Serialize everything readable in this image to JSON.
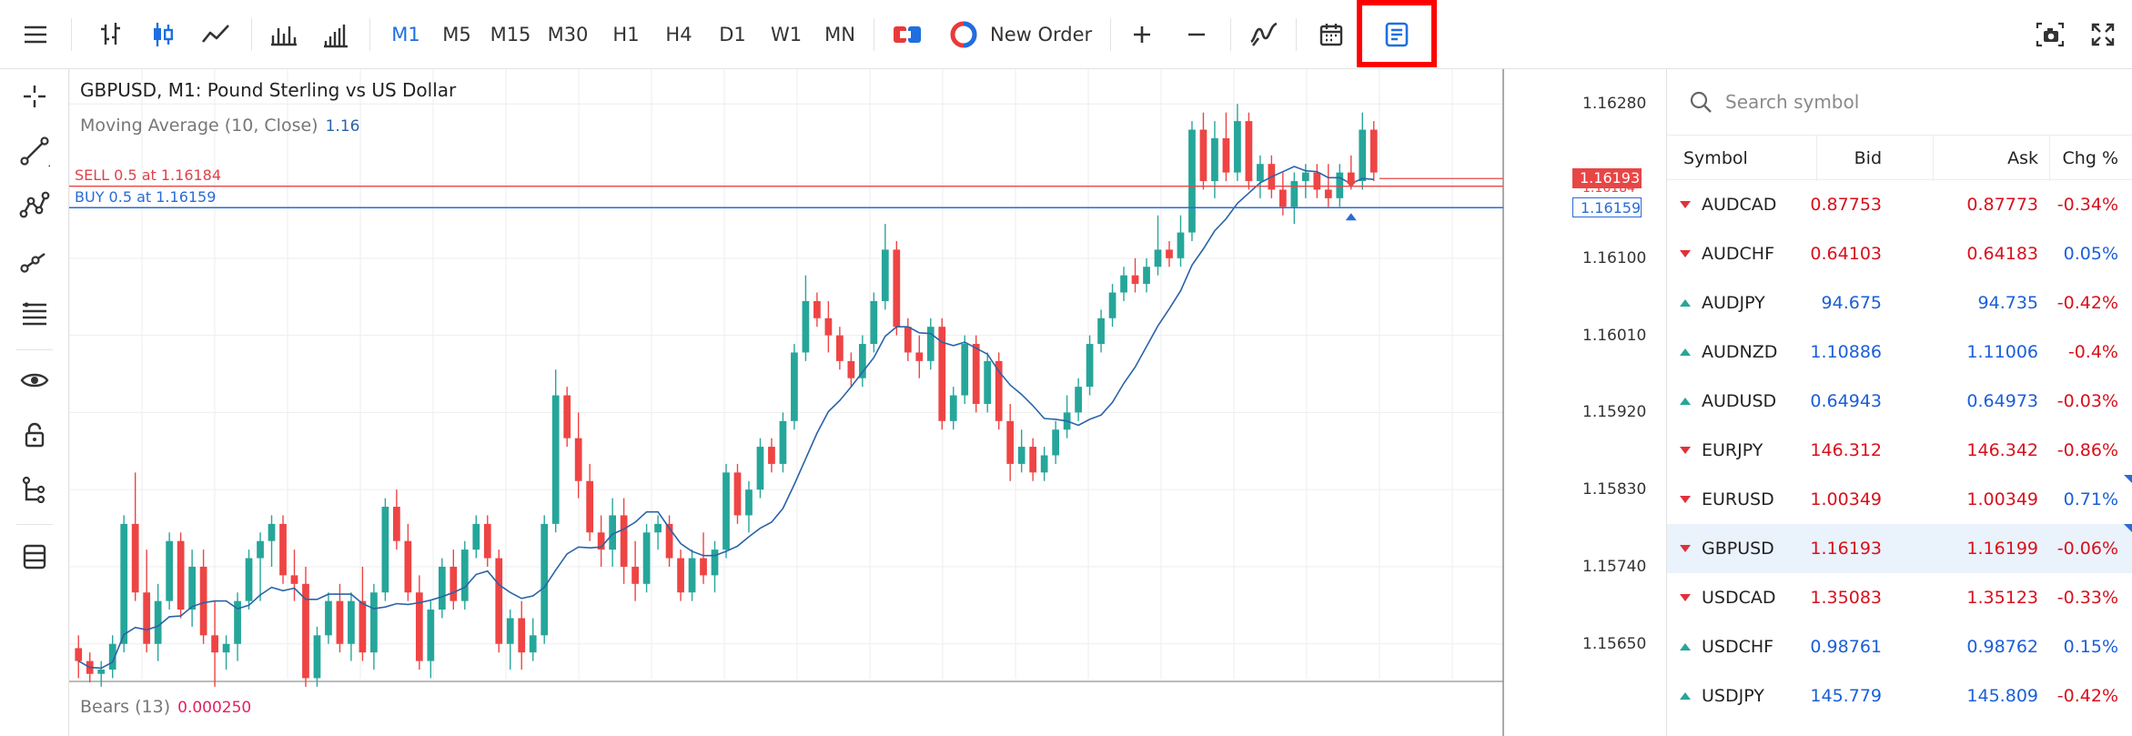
{
  "toolbar": {
    "timeframes": [
      {
        "label": "M1",
        "active": true
      },
      {
        "label": "M5",
        "active": false
      },
      {
        "label": "M15",
        "active": false
      },
      {
        "label": "M30",
        "active": false
      },
      {
        "label": "H1",
        "active": false
      },
      {
        "label": "H4",
        "active": false
      },
      {
        "label": "D1",
        "active": false
      },
      {
        "label": "W1",
        "active": false
      },
      {
        "label": "MN",
        "active": false
      }
    ],
    "new_order_label": "New Order",
    "icons": [
      "menu-icon",
      "bar-chart-icon",
      "candlestick-icon",
      "line-chart-icon",
      "volume-bars-icon",
      "tick-chart-icon",
      "one-click-trading-icon",
      "new-order-icon",
      "zoom-in-icon",
      "zoom-out-icon",
      "indicators-icon",
      "calendar-icon",
      "order-book-icon",
      "screenshot-icon",
      "fullscreen-icon"
    ],
    "accent_color": "#1e6fe0",
    "highlight_color": "#ff0000"
  },
  "left_tools": [
    "crosshair-icon",
    "trendline-icon",
    "multi-point-line-icon",
    "ray-icon",
    "fibonacci-icon",
    "eye-icon",
    "lock-icon",
    "object-tree-icon",
    "layers-icon"
  ],
  "chart": {
    "title": "GBPUSD, M1: Pound Sterling vs US Dollar",
    "indicator": {
      "label": "Moving Average (10, Close)",
      "value": "1.16"
    },
    "sell_line": {
      "label": "SELL 0.5 at 1.16184",
      "price": 1.16184,
      "tag": "1.16193",
      "color": "#e84545"
    },
    "buy_line": {
      "label": "BUY 0.5 at 1.16159",
      "price": 1.16159,
      "tag": "1.16159",
      "color": "#2a6bd6"
    },
    "price_tags_bottom_overlap": "1.16184",
    "sub_indicator": {
      "label": "Bears (13)",
      "value": "0.000250"
    },
    "y_ticks": [
      "1.16280",
      "1.16100",
      "1.16010",
      "1.15920",
      "1.15830",
      "1.15740",
      "1.15650"
    ],
    "up_color": "#26a69a",
    "down_color": "#ef4444"
  },
  "chart_data": {
    "type": "candlestick",
    "y_axis_labels": [
      "1.16280",
      "1.16100",
      "1.16010",
      "1.15920",
      "1.15830",
      "1.15740",
      "1.15650"
    ],
    "ylim": [
      1.1562,
      1.1631
    ],
    "ohlc": [
      [
        1.15645,
        1.1566,
        1.1561,
        1.1563
      ],
      [
        1.1563,
        1.1564,
        1.15605,
        1.15615
      ],
      [
        1.15615,
        1.1563,
        1.156,
        1.1562
      ],
      [
        1.1562,
        1.1566,
        1.1561,
        1.1565
      ],
      [
        1.1565,
        1.158,
        1.1564,
        1.1579
      ],
      [
        1.1579,
        1.1585,
        1.157,
        1.1571
      ],
      [
        1.1571,
        1.1576,
        1.1564,
        1.1565
      ],
      [
        1.1565,
        1.1572,
        1.1563,
        1.157
      ],
      [
        1.157,
        1.1578,
        1.1569,
        1.1577
      ],
      [
        1.1577,
        1.1578,
        1.1568,
        1.1569
      ],
      [
        1.1569,
        1.1576,
        1.1567,
        1.1574
      ],
      [
        1.1574,
        1.1576,
        1.1565,
        1.1566
      ],
      [
        1.1566,
        1.157,
        1.156,
        1.1564
      ],
      [
        1.1564,
        1.1566,
        1.1562,
        1.1565
      ],
      [
        1.1565,
        1.1571,
        1.1563,
        1.157
      ],
      [
        1.157,
        1.1576,
        1.1569,
        1.1575
      ],
      [
        1.1575,
        1.1578,
        1.157,
        1.1577
      ],
      [
        1.1577,
        1.158,
        1.1574,
        1.1579
      ],
      [
        1.1579,
        1.158,
        1.1572,
        1.1573
      ],
      [
        1.1573,
        1.1576,
        1.157,
        1.1572
      ],
      [
        1.1572,
        1.1574,
        1.156,
        1.1561
      ],
      [
        1.1561,
        1.1567,
        1.156,
        1.1566
      ],
      [
        1.1566,
        1.1571,
        1.1565,
        1.157
      ],
      [
        1.157,
        1.1572,
        1.1564,
        1.1565
      ],
      [
        1.1565,
        1.1571,
        1.1563,
        1.157
      ],
      [
        1.157,
        1.1574,
        1.1563,
        1.1564
      ],
      [
        1.1564,
        1.1572,
        1.1562,
        1.1571
      ],
      [
        1.1571,
        1.1582,
        1.157,
        1.1581
      ],
      [
        1.1581,
        1.1583,
        1.1576,
        1.1577
      ],
      [
        1.1577,
        1.1579,
        1.157,
        1.1571
      ],
      [
        1.1571,
        1.1573,
        1.1562,
        1.1563
      ],
      [
        1.1563,
        1.157,
        1.1561,
        1.1569
      ],
      [
        1.1569,
        1.1575,
        1.1568,
        1.1574
      ],
      [
        1.1574,
        1.1576,
        1.1569,
        1.157
      ],
      [
        1.157,
        1.1577,
        1.1569,
        1.1576
      ],
      [
        1.1576,
        1.158,
        1.1575,
        1.1579
      ],
      [
        1.1579,
        1.158,
        1.1574,
        1.1575
      ],
      [
        1.1575,
        1.1576,
        1.1564,
        1.1565
      ],
      [
        1.1565,
        1.1569,
        1.1562,
        1.1568
      ],
      [
        1.1568,
        1.157,
        1.1562,
        1.1564
      ],
      [
        1.1564,
        1.1568,
        1.1563,
        1.1566
      ],
      [
        1.1566,
        1.158,
        1.1565,
        1.1579
      ],
      [
        1.1579,
        1.1597,
        1.1578,
        1.1594
      ],
      [
        1.1594,
        1.1595,
        1.1588,
        1.1589
      ],
      [
        1.1589,
        1.1592,
        1.1582,
        1.1584
      ],
      [
        1.1584,
        1.1586,
        1.1577,
        1.1578
      ],
      [
        1.1578,
        1.158,
        1.1574,
        1.1576
      ],
      [
        1.1576,
        1.1582,
        1.1574,
        1.158
      ],
      [
        1.158,
        1.1582,
        1.1572,
        1.1574
      ],
      [
        1.1574,
        1.1577,
        1.157,
        1.1572
      ],
      [
        1.1572,
        1.1579,
        1.1571,
        1.1578
      ],
      [
        1.1578,
        1.158,
        1.1576,
        1.1579
      ],
      [
        1.1579,
        1.158,
        1.1574,
        1.1575
      ],
      [
        1.1575,
        1.1576,
        1.157,
        1.1571
      ],
      [
        1.1571,
        1.1576,
        1.157,
        1.1575
      ],
      [
        1.1575,
        1.1578,
        1.1572,
        1.1573
      ],
      [
        1.1573,
        1.1577,
        1.1571,
        1.1576
      ],
      [
        1.1576,
        1.1586,
        1.1575,
        1.1585
      ],
      [
        1.1585,
        1.1586,
        1.1579,
        1.158
      ],
      [
        1.158,
        1.1584,
        1.1578,
        1.1583
      ],
      [
        1.1583,
        1.1589,
        1.1582,
        1.1588
      ],
      [
        1.1588,
        1.1589,
        1.1585,
        1.1586
      ],
      [
        1.1586,
        1.1592,
        1.1585,
        1.1591
      ],
      [
        1.1591,
        1.16,
        1.159,
        1.1599
      ],
      [
        1.1599,
        1.1608,
        1.1598,
        1.1605
      ],
      [
        1.1605,
        1.1606,
        1.1602,
        1.1603
      ],
      [
        1.1603,
        1.1605,
        1.1599,
        1.1601
      ],
      [
        1.1601,
        1.1602,
        1.1597,
        1.1598
      ],
      [
        1.1598,
        1.1599,
        1.1595,
        1.1596
      ],
      [
        1.1596,
        1.1601,
        1.1595,
        1.16
      ],
      [
        1.16,
        1.1606,
        1.1599,
        1.1605
      ],
      [
        1.1605,
        1.1614,
        1.1604,
        1.1611
      ],
      [
        1.1611,
        1.1612,
        1.1601,
        1.1602
      ],
      [
        1.1602,
        1.1603,
        1.1598,
        1.1599
      ],
      [
        1.1599,
        1.1601,
        1.1596,
        1.1598
      ],
      [
        1.1598,
        1.1603,
        1.1597,
        1.1602
      ],
      [
        1.1602,
        1.1603,
        1.159,
        1.1591
      ],
      [
        1.1591,
        1.1595,
        1.159,
        1.1594
      ],
      [
        1.1594,
        1.1601,
        1.1593,
        1.16
      ],
      [
        1.16,
        1.1601,
        1.1592,
        1.1593
      ],
      [
        1.1593,
        1.1599,
        1.1592,
        1.1598
      ],
      [
        1.1598,
        1.1599,
        1.159,
        1.1591
      ],
      [
        1.1591,
        1.1593,
        1.1584,
        1.1586
      ],
      [
        1.1586,
        1.159,
        1.1585,
        1.1588
      ],
      [
        1.1588,
        1.1589,
        1.1584,
        1.1585
      ],
      [
        1.1585,
        1.1588,
        1.1584,
        1.1587
      ],
      [
        1.1587,
        1.1591,
        1.1586,
        1.159
      ],
      [
        1.159,
        1.1594,
        1.1589,
        1.1592
      ],
      [
        1.1592,
        1.1596,
        1.1591,
        1.1595
      ],
      [
        1.1595,
        1.1601,
        1.1594,
        1.16
      ],
      [
        1.16,
        1.1604,
        1.1599,
        1.1603
      ],
      [
        1.1603,
        1.1607,
        1.1602,
        1.1606
      ],
      [
        1.1606,
        1.1609,
        1.1605,
        1.1608
      ],
      [
        1.1608,
        1.161,
        1.1606,
        1.1607
      ],
      [
        1.1607,
        1.161,
        1.1606,
        1.1609
      ],
      [
        1.1609,
        1.1615,
        1.1608,
        1.1611
      ],
      [
        1.1611,
        1.1612,
        1.1609,
        1.161
      ],
      [
        1.161,
        1.1615,
        1.1609,
        1.1613
      ],
      [
        1.1613,
        1.1626,
        1.1612,
        1.1625
      ],
      [
        1.1625,
        1.1627,
        1.1618,
        1.1619
      ],
      [
        1.1619,
        1.1626,
        1.1617,
        1.1624
      ],
      [
        1.1624,
        1.1627,
        1.1619,
        1.162
      ],
      [
        1.162,
        1.1628,
        1.1619,
        1.1626
      ],
      [
        1.1626,
        1.1627,
        1.1618,
        1.1619
      ],
      [
        1.1619,
        1.1622,
        1.1617,
        1.1621
      ],
      [
        1.1621,
        1.1622,
        1.1617,
        1.1618
      ],
      [
        1.1618,
        1.162,
        1.1615,
        1.1616
      ],
      [
        1.1616,
        1.162,
        1.1614,
        1.1619
      ],
      [
        1.1619,
        1.1621,
        1.1617,
        1.162
      ],
      [
        1.162,
        1.1621,
        1.1617,
        1.1618
      ],
      [
        1.1618,
        1.1621,
        1.1616,
        1.1617
      ],
      [
        1.1617,
        1.1621,
        1.1616,
        1.162
      ],
      [
        1.162,
        1.1622,
        1.1618,
        1.1619
      ],
      [
        1.1619,
        1.1627,
        1.1618,
        1.1625
      ],
      [
        1.1625,
        1.1626,
        1.1619,
        1.162
      ]
    ],
    "moving_average": {
      "name": "Moving Average (10, Close)"
    },
    "sub_panel": {
      "name": "Bears (13)",
      "value": "0.000250"
    }
  },
  "panel": {
    "search_placeholder": "Search symbol",
    "headers": {
      "symbol": "Symbol",
      "bid": "Bid",
      "ask": "Ask",
      "chg": "Chg %"
    },
    "symbols": [
      {
        "name": "AUDCAD",
        "dir": "dn",
        "bid": "0.87753",
        "ask": "0.87773",
        "chg": "-0.34%",
        "price_color": "red",
        "chg_color": "red",
        "selected": false,
        "flag": false
      },
      {
        "name": "AUDCHF",
        "dir": "dn",
        "bid": "0.64103",
        "ask": "0.64183",
        "chg": "0.05%",
        "price_color": "red",
        "chg_color": "blue",
        "selected": false,
        "flag": false
      },
      {
        "name": "AUDJPY",
        "dir": "up",
        "bid": "94.675",
        "ask": "94.735",
        "chg": "-0.42%",
        "price_color": "blue",
        "chg_color": "red",
        "selected": false,
        "flag": false
      },
      {
        "name": "AUDNZD",
        "dir": "up",
        "bid": "1.10886",
        "ask": "1.11006",
        "chg": "-0.4%",
        "price_color": "blue",
        "chg_color": "red",
        "selected": false,
        "flag": false
      },
      {
        "name": "AUDUSD",
        "dir": "up",
        "bid": "0.64943",
        "ask": "0.64973",
        "chg": "-0.03%",
        "price_color": "blue",
        "chg_color": "red",
        "selected": false,
        "flag": false
      },
      {
        "name": "EURJPY",
        "dir": "dn",
        "bid": "146.312",
        "ask": "146.342",
        "chg": "-0.86%",
        "price_color": "red",
        "chg_color": "red",
        "selected": false,
        "flag": false
      },
      {
        "name": "EURUSD",
        "dir": "dn",
        "bid": "1.00349",
        "ask": "1.00349",
        "chg": "0.71%",
        "price_color": "red",
        "chg_color": "blue",
        "selected": false,
        "flag": true
      },
      {
        "name": "GBPUSD",
        "dir": "dn",
        "bid": "1.16193",
        "ask": "1.16199",
        "chg": "-0.06%",
        "price_color": "red",
        "chg_color": "red",
        "selected": true,
        "flag": true
      },
      {
        "name": "USDCAD",
        "dir": "dn",
        "bid": "1.35083",
        "ask": "1.35123",
        "chg": "-0.33%",
        "price_color": "red",
        "chg_color": "red",
        "selected": false,
        "flag": false
      },
      {
        "name": "USDCHF",
        "dir": "up",
        "bid": "0.98761",
        "ask": "0.98762",
        "chg": "0.15%",
        "price_color": "blue",
        "chg_color": "blue",
        "selected": false,
        "flag": false
      },
      {
        "name": "USDJPY",
        "dir": "up",
        "bid": "145.779",
        "ask": "145.809",
        "chg": "-0.42%",
        "price_color": "blue",
        "chg_color": "red",
        "selected": false,
        "flag": false
      }
    ]
  }
}
